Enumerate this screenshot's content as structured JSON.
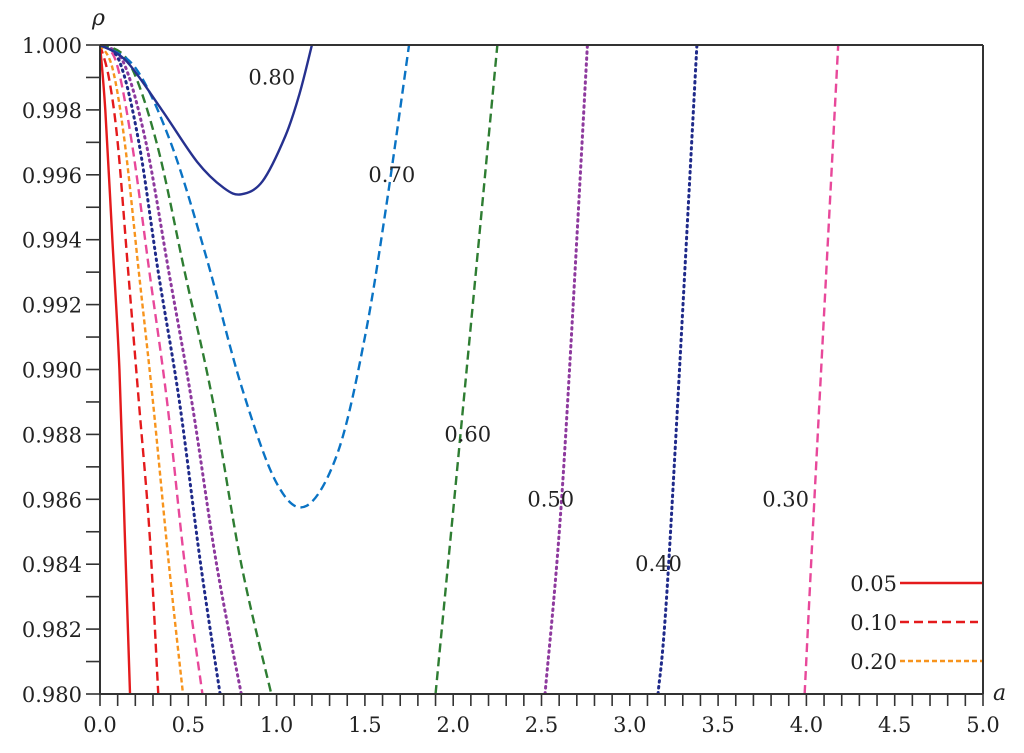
{
  "chart_data": {
    "type": "line",
    "title": "",
    "xlabel": "a",
    "ylabel": "ρ",
    "xlim": [
      0.0,
      5.0
    ],
    "ylim": [
      0.98,
      1.0
    ],
    "grid": false,
    "legend_position": "lower right",
    "x_ticks": [
      "0.0",
      "0.5",
      "1.0",
      "1.5",
      "2.0",
      "2.5",
      "3.0",
      "3.5",
      "4.0",
      "4.5",
      "5.0"
    ],
    "y_ticks": [
      "0.980",
      "0.982",
      "0.984",
      "0.986",
      "0.988",
      "0.990",
      "0.992",
      "0.994",
      "0.996",
      "0.998",
      "1.000"
    ],
    "legend": [
      {
        "label": "0.05",
        "color": "#e41a1c",
        "style": "solid"
      },
      {
        "label": "0.10",
        "color": "#e41a1c",
        "style": "dashed"
      },
      {
        "label": "0.20",
        "color": "#f7941d",
        "style": "finedash"
      }
    ],
    "series": [
      {
        "name": "0.05",
        "color": "#e41a1c",
        "style": "solid",
        "points": [
          [
            0.0,
            1.0
          ],
          [
            0.03,
            0.998
          ],
          [
            0.07,
            0.994
          ],
          [
            0.11,
            0.99
          ],
          [
            0.14,
            0.985
          ],
          [
            0.17,
            0.98
          ]
        ]
      },
      {
        "name": "0.10",
        "color": "#e41a1c",
        "style": "dashed",
        "points": [
          [
            0.0,
            1.0
          ],
          [
            0.05,
            0.999
          ],
          [
            0.1,
            0.997
          ],
          [
            0.16,
            0.993
          ],
          [
            0.22,
            0.989
          ],
          [
            0.28,
            0.985
          ],
          [
            0.33,
            0.98
          ]
        ]
      },
      {
        "name": "0.20",
        "color": "#f7941d",
        "style": "finedash",
        "points": [
          [
            0.0,
            1.0
          ],
          [
            0.07,
            0.9993
          ],
          [
            0.14,
            0.997
          ],
          [
            0.22,
            0.993
          ],
          [
            0.3,
            0.989
          ],
          [
            0.39,
            0.984
          ],
          [
            0.47,
            0.98
          ]
        ]
      },
      {
        "name": "0.30",
        "color": "#e8489a",
        "style": "dashed",
        "points": [
          [
            0.0,
            1.0
          ],
          [
            0.09,
            0.9995
          ],
          [
            0.18,
            0.997
          ],
          [
            0.28,
            0.993
          ],
          [
            0.38,
            0.989
          ],
          [
            0.48,
            0.984
          ],
          [
            0.58,
            0.98
          ]
        ]
      },
      {
        "name": "0.40",
        "color": "#1f2a8a",
        "style": "dotted",
        "points": [
          [
            0.0,
            1.0
          ],
          [
            0.11,
            0.9995
          ],
          [
            0.22,
            0.997
          ],
          [
            0.33,
            0.993
          ],
          [
            0.45,
            0.989
          ],
          [
            0.57,
            0.984
          ],
          [
            0.68,
            0.98
          ]
        ]
      },
      {
        "name": "0.50",
        "color": "#8e3a9e",
        "style": "dotted",
        "points": [
          [
            0.0,
            1.0
          ],
          [
            0.13,
            0.9995
          ],
          [
            0.26,
            0.997
          ],
          [
            0.39,
            0.993
          ],
          [
            0.52,
            0.989
          ],
          [
            0.66,
            0.984
          ],
          [
            0.8,
            0.98
          ]
        ]
      },
      {
        "name": "0.60",
        "color": "#2e7d32",
        "style": "dashed",
        "points": [
          [
            0.0,
            1.0
          ],
          [
            0.16,
            0.9995
          ],
          [
            0.32,
            0.997
          ],
          [
            0.48,
            0.993
          ],
          [
            0.64,
            0.989
          ],
          [
            0.8,
            0.984
          ],
          [
            0.97,
            0.98
          ]
        ]
      },
      {
        "name": "0.70",
        "color": "#0a73c4",
        "style": "dashed",
        "points": [
          [
            0.0,
            1.0
          ],
          [
            0.2,
            0.9993
          ],
          [
            0.4,
            0.997
          ],
          [
            0.6,
            0.9935
          ],
          [
            0.8,
            0.9895
          ],
          [
            1.0,
            0.9865
          ],
          [
            1.17,
            0.9858
          ],
          [
            1.35,
            0.9875
          ],
          [
            1.5,
            0.991
          ],
          [
            1.62,
            0.995
          ],
          [
            1.75,
            1.0
          ]
        ]
      },
      {
        "name": "0.80",
        "color": "#26318f",
        "style": "solid",
        "points": [
          [
            0.0,
            1.0
          ],
          [
            0.15,
            0.9995
          ],
          [
            0.35,
            0.998
          ],
          [
            0.55,
            0.9964
          ],
          [
            0.7,
            0.9956
          ],
          [
            0.8,
            0.9954
          ],
          [
            0.92,
            0.9958
          ],
          [
            1.05,
            0.9972
          ],
          [
            1.13,
            0.9985
          ],
          [
            1.2,
            1.0
          ]
        ]
      },
      {
        "name": "0.60 (right branch)",
        "color": "#2e7d32",
        "style": "dashed",
        "points": [
          [
            1.9,
            0.98
          ],
          [
            2.05,
            0.9885
          ],
          [
            2.25,
            1.0
          ]
        ]
      },
      {
        "name": "0.50 (right branch)",
        "color": "#8e3a9e",
        "style": "dotted",
        "points": [
          [
            2.52,
            0.98
          ],
          [
            2.62,
            0.9865
          ],
          [
            2.76,
            1.0
          ]
        ]
      },
      {
        "name": "0.40 (right branch)",
        "color": "#1f2a8a",
        "style": "dotted",
        "points": [
          [
            3.16,
            0.98
          ],
          [
            3.22,
            0.984
          ],
          [
            3.38,
            1.0
          ]
        ]
      },
      {
        "name": "0.30 (right branch)",
        "color": "#e8489a",
        "style": "dashed",
        "points": [
          [
            3.99,
            0.98
          ],
          [
            4.05,
            0.9865
          ],
          [
            4.18,
            1.0
          ]
        ]
      }
    ],
    "annotations": [
      {
        "text": "0.80",
        "x": 0.84,
        "y": 0.999
      },
      {
        "text": "0.70",
        "x": 1.52,
        "y": 0.996
      },
      {
        "text": "0.60",
        "x": 1.95,
        "y": 0.988
      },
      {
        "text": "0.50",
        "x": 2.42,
        "y": 0.986
      },
      {
        "text": "0.40",
        "x": 3.03,
        "y": 0.984
      },
      {
        "text": "0.30",
        "x": 3.75,
        "y": 0.986
      }
    ]
  }
}
